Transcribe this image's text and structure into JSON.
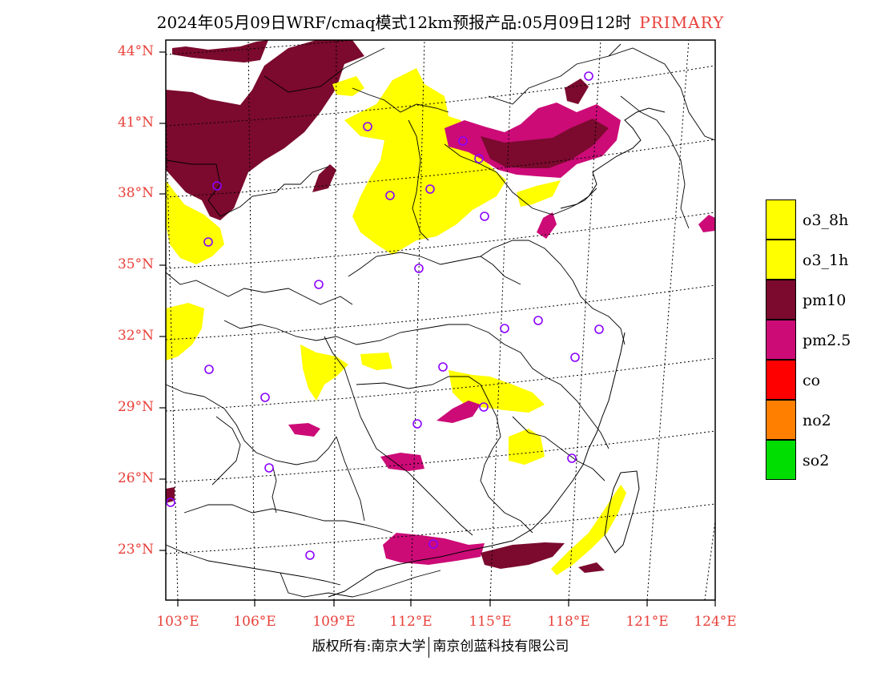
{
  "title": {
    "main": "2024年05月09日WRF/cmaq模式12km预报产品:05月09日12时",
    "tag": "PRIMARY"
  },
  "map": {
    "lat_labels": [
      "44°N",
      "41°N",
      "38°N",
      "35°N",
      "32°N",
      "29°N",
      "26°N",
      "23°N"
    ],
    "lon_labels": [
      "103°E",
      "106°E",
      "109°E",
      "112°E",
      "115°E",
      "118°E",
      "121°E",
      "124°E"
    ]
  },
  "legend": [
    {
      "label": "o3_8h",
      "color": "#ffff00"
    },
    {
      "label": "o3_1h",
      "color": "#ffff00"
    },
    {
      "label": "pm10",
      "color": "#7b0a2e"
    },
    {
      "label": "pm2.5",
      "color": "#cc0b77"
    },
    {
      "label": "co",
      "color": "#ff0000"
    },
    {
      "label": "no2",
      "color": "#ff7f00"
    },
    {
      "label": "so2",
      "color": "#00dd00"
    }
  ],
  "colors": {
    "axis_label": "#e8403a",
    "station_marker": "#8b00ff"
  },
  "copyright": {
    "left": "版权所有:南京大学",
    "right": "南京创蓝科技有限公司"
  }
}
